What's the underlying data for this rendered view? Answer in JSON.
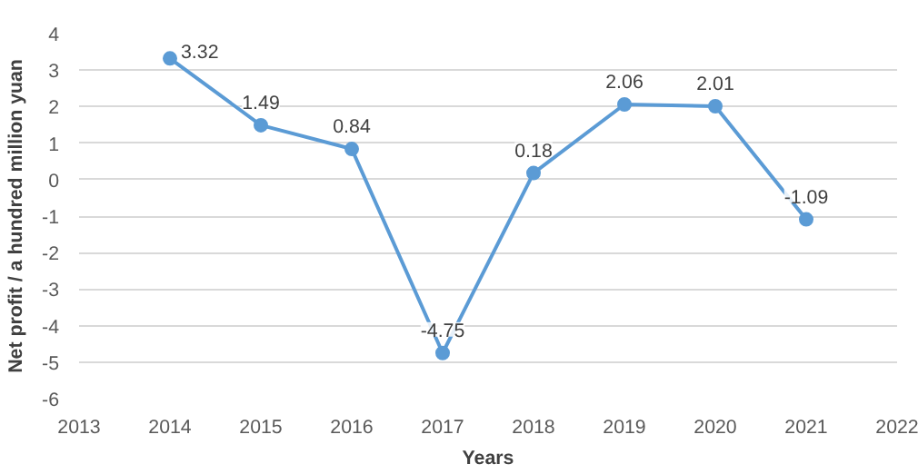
{
  "chart_data": {
    "type": "line",
    "xlabel": "Years",
    "ylabel": "Net profit / a hundred million yuan",
    "x": [
      2014,
      2015,
      2016,
      2017,
      2018,
      2019,
      2020,
      2021
    ],
    "series": [
      {
        "color": "#5b9bd5",
        "values": [
          3.32,
          1.49,
          0.84,
          -4.75,
          0.18,
          2.06,
          2.01,
          -1.09
        ]
      }
    ],
    "xlim": [
      2013,
      2022
    ],
    "xticks": [
      2013,
      2014,
      2015,
      2016,
      2017,
      2018,
      2019,
      2020,
      2021,
      2022
    ],
    "ylim": [
      -6,
      4
    ],
    "yticks": [
      -6,
      -5,
      -4,
      -3,
      -2,
      -1,
      0,
      1,
      2,
      3,
      4
    ],
    "grid": "y",
    "marker": "circle",
    "line_style": "solid",
    "data_labels": true
  }
}
